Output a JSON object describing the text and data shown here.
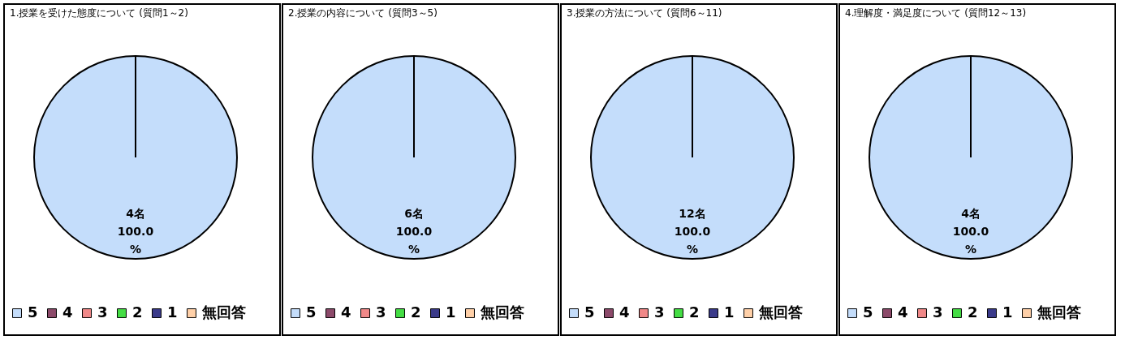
{
  "chart_data": [
    {
      "type": "pie",
      "title": "1.授業を受けた態度について",
      "subtitle": "(質問1～2)",
      "categories": [
        "5",
        "4",
        "3",
        "2",
        "1",
        "無回答"
      ],
      "values": [
        100,
        0,
        0,
        0,
        0,
        0
      ],
      "colors": [
        "#c4ddfb",
        "#8c4a6a",
        "#f08888",
        "#44dd44",
        "#3a3a8a",
        "#ffd0a8"
      ],
      "value_labels": [
        "4名 100.0 %",
        null,
        null,
        null,
        null,
        null
      ],
      "legend": "bottom"
    },
    {
      "type": "pie",
      "title": "2.授業の内容について",
      "subtitle": "(質問3～5)",
      "categories": [
        "5",
        "4",
        "3",
        "2",
        "1",
        "無回答"
      ],
      "values": [
        100,
        0,
        0,
        0,
        0,
        0
      ],
      "colors": [
        "#c4ddfb",
        "#8c4a6a",
        "#f08888",
        "#44dd44",
        "#3a3a8a",
        "#ffd0a8"
      ],
      "value_labels": [
        "6名 100.0 %",
        null,
        null,
        null,
        null,
        null
      ],
      "legend": "bottom"
    },
    {
      "type": "pie",
      "title": "3.授業の方法について",
      "subtitle": "(質問6～11)",
      "categories": [
        "5",
        "4",
        "3",
        "2",
        "1",
        "無回答"
      ],
      "values": [
        100,
        0,
        0,
        0,
        0,
        0
      ],
      "colors": [
        "#c4ddfb",
        "#8c4a6a",
        "#f08888",
        "#44dd44",
        "#3a3a8a",
        "#ffd0a8"
      ],
      "value_labels": [
        "12名 100.0 %",
        null,
        null,
        null,
        null,
        null
      ],
      "legend": "bottom"
    },
    {
      "type": "pie",
      "title": "4.理解度・満足度について",
      "subtitle": "(質問12～13)",
      "categories": [
        "5",
        "4",
        "3",
        "2",
        "1",
        "無回答"
      ],
      "values": [
        100,
        0,
        0,
        0,
        0,
        0
      ],
      "colors": [
        "#c4ddfb",
        "#8c4a6a",
        "#f08888",
        "#44dd44",
        "#3a3a8a",
        "#ffd0a8"
      ],
      "value_labels": [
        "4名 100.0 %",
        null,
        null,
        null,
        null,
        null
      ],
      "legend": "bottom"
    }
  ]
}
